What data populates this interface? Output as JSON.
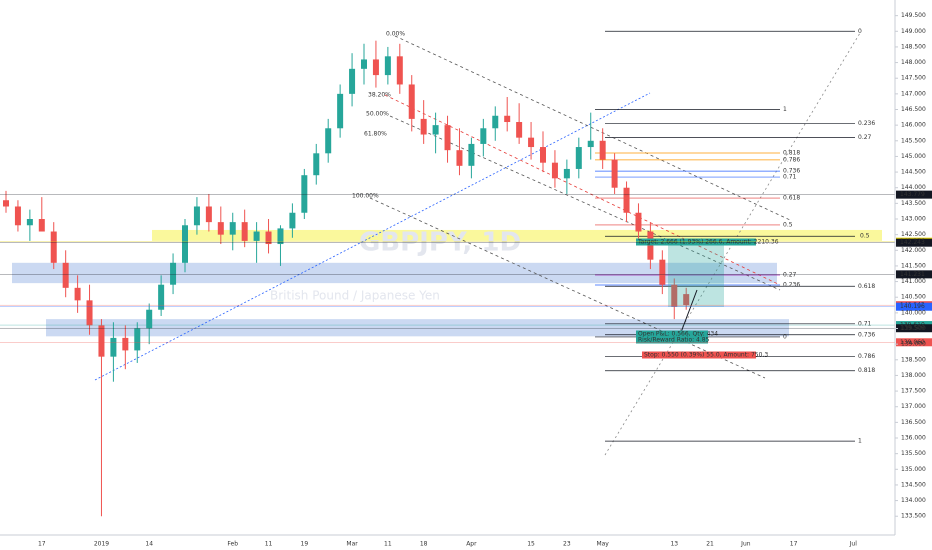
{
  "chart_data": {
    "type": "candlestick",
    "title": "GBPJPY, 1D",
    "subtitle": "British Pound / Japanese Yen",
    "categories": [
      "",
      null,
      null,
      "17",
      null,
      null,
      null,
      null,
      "2019",
      null,
      null,
      null,
      "14",
      null,
      null,
      null,
      null,
      null,
      null,
      "Feb",
      null,
      null,
      "11",
      null,
      null,
      "19",
      null,
      null,
      null,
      "Mar",
      null,
      null,
      "11",
      null,
      null,
      "18",
      null,
      null,
      null,
      "Apr",
      null,
      null,
      null,
      null,
      "15",
      null,
      null,
      "23",
      null,
      null,
      "May",
      null,
      null,
      null,
      null,
      null,
      "13",
      null,
      null,
      "21",
      null,
      null,
      "Jun",
      null,
      null,
      null,
      "17",
      null,
      null,
      null,
      null,
      "Jul",
      null,
      null,
      null
    ],
    "open": [
      143.6,
      143.4,
      142.8,
      143.0,
      142.6,
      141.6,
      140.8,
      140.4,
      139.6,
      138.6,
      139.2,
      138.8,
      139.5,
      140.1,
      140.9,
      141.6,
      142.8,
      143.4,
      142.9,
      142.5,
      142.9,
      142.3,
      142.6,
      142.2,
      142.7,
      143.2,
      144.4,
      145.1,
      145.9,
      147.0,
      147.8,
      148.1,
      147.6,
      148.2,
      147.3,
      146.2,
      145.7,
      146.0,
      145.2,
      144.7,
      145.4,
      145.9,
      146.3,
      146.1,
      145.6,
      145.3,
      144.8,
      144.3,
      144.6,
      145.3,
      145.5,
      144.9,
      144.0,
      143.2,
      142.6,
      141.7,
      140.9,
      140.6,
      null,
      null,
      null,
      null,
      null,
      null,
      null,
      null,
      null,
      null,
      null,
      null,
      null,
      null,
      null,
      null,
      null
    ],
    "high": [
      143.9,
      143.6,
      143.3,
      143.7,
      142.9,
      142.0,
      141.2,
      140.9,
      139.8,
      139.7,
      139.6,
      139.7,
      140.3,
      141.2,
      141.9,
      143.0,
      143.7,
      143.8,
      143.4,
      143.2,
      143.3,
      142.9,
      143.0,
      142.8,
      143.5,
      144.6,
      145.4,
      146.2,
      147.3,
      148.3,
      148.6,
      148.7,
      148.5,
      148.6,
      147.6,
      146.8,
      146.4,
      146.3,
      145.9,
      145.6,
      146.2,
      146.6,
      146.9,
      146.7,
      146.1,
      145.8,
      145.2,
      144.9,
      145.6,
      146.4,
      145.9,
      145.1,
      144.2,
      143.5,
      142.9,
      142.0,
      141.1,
      140.8,
      null,
      null,
      null,
      null,
      null,
      null,
      null,
      null,
      null,
      null,
      null,
      null,
      null,
      null,
      null,
      null,
      null
    ],
    "low": [
      143.2,
      142.6,
      142.3,
      142.7,
      141.4,
      140.5,
      140.0,
      139.3,
      133.5,
      137.8,
      138.2,
      138.4,
      139.0,
      139.9,
      140.6,
      141.3,
      142.5,
      142.6,
      142.2,
      142.0,
      142.1,
      141.6,
      141.9,
      141.5,
      142.4,
      143.0,
      144.1,
      144.8,
      145.6,
      146.6,
      147.3,
      147.2,
      147.3,
      147.0,
      145.8,
      145.4,
      145.1,
      144.8,
      144.4,
      144.3,
      145.0,
      145.5,
      145.8,
      145.4,
      144.9,
      144.5,
      144.0,
      143.8,
      144.3,
      144.9,
      144.6,
      143.8,
      142.9,
      142.3,
      141.4,
      140.6,
      139.8,
      140.1,
      null,
      null,
      null,
      null,
      null,
      null,
      null,
      null,
      null,
      null,
      null,
      null,
      null,
      null,
      null,
      null,
      null
    ],
    "close": [
      143.4,
      142.8,
      143.0,
      142.6,
      141.6,
      140.8,
      140.4,
      139.6,
      138.6,
      139.2,
      138.8,
      139.5,
      140.1,
      140.9,
      141.6,
      142.8,
      143.4,
      142.9,
      142.5,
      142.9,
      142.3,
      142.6,
      142.2,
      142.7,
      143.2,
      144.4,
      145.1,
      145.9,
      147.0,
      147.8,
      148.1,
      147.6,
      148.2,
      147.3,
      146.2,
      145.7,
      146.0,
      145.2,
      144.7,
      145.4,
      145.9,
      146.3,
      146.1,
      145.6,
      145.3,
      144.8,
      144.3,
      144.6,
      145.3,
      145.5,
      144.9,
      144.0,
      143.2,
      142.6,
      141.7,
      140.9,
      140.2,
      140.25,
      null,
      null,
      null,
      null,
      null,
      null,
      null,
      null,
      null,
      null,
      null,
      null,
      null,
      null,
      null,
      null,
      null
    ],
    "up_color": "#26a69a",
    "down_color": "#ef5350",
    "ylim": [
      132.9,
      150.0
    ],
    "yticks": [
      {
        "value": 133.5,
        "label": "133.500"
      },
      {
        "value": 134,
        "label": "134.000"
      },
      {
        "value": 134.5,
        "label": "134.500"
      },
      {
        "value": 135,
        "label": "135.000"
      },
      {
        "value": 135.5,
        "label": "135.500"
      },
      {
        "value": 136,
        "label": "136.000"
      },
      {
        "value": 136.5,
        "label": "136.500"
      },
      {
        "value": 137,
        "label": "137.000"
      },
      {
        "value": 137.5,
        "label": "137.500"
      },
      {
        "value": 138,
        "label": "138.000"
      },
      {
        "value": 138.5,
        "label": "138.500"
      },
      {
        "value": 139,
        "label": "139.000"
      },
      {
        "value": 139.5,
        "label": "139.500"
      },
      {
        "value": 140,
        "label": "140.000"
      },
      {
        "value": 140.5,
        "label": "140.500"
      },
      {
        "value": 141,
        "label": "141.000"
      },
      {
        "value": 141.5,
        "label": "141.500"
      },
      {
        "value": 142,
        "label": "142.000"
      },
      {
        "value": 142.5,
        "label": "142.500"
      },
      {
        "value": 143,
        "label": "143.000"
      },
      {
        "value": 143.5,
        "label": "143.500"
      },
      {
        "value": 144,
        "label": "144.000"
      },
      {
        "value": 144.5,
        "label": "144.500"
      },
      {
        "value": 145,
        "label": "145.000"
      },
      {
        "value": 145.5,
        "label": "145.500"
      },
      {
        "value": 146,
        "label": "146.000"
      },
      {
        "value": 146.5,
        "label": "146.500"
      },
      {
        "value": 147,
        "label": "147.000"
      },
      {
        "value": 147.5,
        "label": "147.500"
      },
      {
        "value": 148,
        "label": "148.000"
      },
      {
        "value": 148.5,
        "label": "148.500"
      },
      {
        "value": 149,
        "label": "149.000"
      },
      {
        "value": 149.5,
        "label": "149.500"
      }
    ],
    "price_tags": [
      {
        "value": 143.779,
        "label": "143.779",
        "color": "#131722"
      },
      {
        "value": 142.276,
        "label": "142.276",
        "color": "#e8d500"
      },
      {
        "value": 142.243,
        "label": "142.243",
        "color": "#131722"
      },
      {
        "value": 141.231,
        "label": "141.231",
        "color": "#131722"
      },
      {
        "value": 140.245,
        "label": "140.245",
        "color": "#ef5350"
      },
      {
        "value": 140.196,
        "label": "140.196",
        "color": "#2962ff"
      },
      {
        "value": 139.61,
        "label": "139.610",
        "color": "#26a69a"
      },
      {
        "value": 139.509,
        "label": "139.509",
        "color": "#131722"
      },
      {
        "value": 139.06,
        "label": "139.060",
        "color": "#ef5350"
      }
    ],
    "zones": [
      {
        "from": 142.3,
        "to": 142.65,
        "color": "#f7f35a"
      },
      {
        "from": 140.95,
        "to": 141.6,
        "color": "#a9c0ea"
      },
      {
        "from": 139.25,
        "to": 139.8,
        "color": "#a9c0ea"
      }
    ],
    "annotations": [
      {
        "text": "0",
        "price": 149.0
      },
      {
        "text": "1",
        "price": 146.5
      },
      {
        "text": "0.236",
        "price": 146.05
      },
      {
        "text": "0.27",
        "price": 145.6
      },
      {
        "text": "0.5",
        "price": 142.45
      },
      {
        "text": "0.618",
        "price": 140.85
      },
      {
        "text": "0.71",
        "price": 139.65
      },
      {
        "text": "0.736",
        "price": 139.3
      },
      {
        "text": "0.786",
        "price": 138.6
      },
      {
        "text": "0.818",
        "price": 138.15
      },
      {
        "text": "1",
        "price": 135.9
      },
      {
        "text": "0.818",
        "price": 145.11
      },
      {
        "text": "0.786",
        "price": 144.89
      },
      {
        "text": "0.736",
        "price": 144.53
      },
      {
        "text": "0.71",
        "price": 144.34
      },
      {
        "text": "0.618",
        "price": 143.67
      },
      {
        "text": "0.5",
        "price": 142.81
      },
      {
        "text": "0.27",
        "price": 141.21
      },
      {
        "text": "0.236",
        "price": 140.89
      },
      {
        "text": "0",
        "price": 139.23
      },
      {
        "text": "0.00%",
        "price": 148.91
      },
      {
        "text": "38.20%",
        "price": 146.96
      },
      {
        "text": "50.00%",
        "price": 146.36
      },
      {
        "text": "61.80%",
        "price": 145.72
      },
      {
        "text": "100.00%",
        "price": 143.74
      }
    ],
    "position": {
      "target": "Target: 2.666 (1.93%) 266.6, Amount: 2210.36",
      "open": "Open P&L: 0.566, Qty: 434",
      "ratio": "Risk/Reward Ratio: 4.85",
      "stop": "Stop: 0.550 (0.39%) 55.0, Amount: 750.3"
    }
  }
}
